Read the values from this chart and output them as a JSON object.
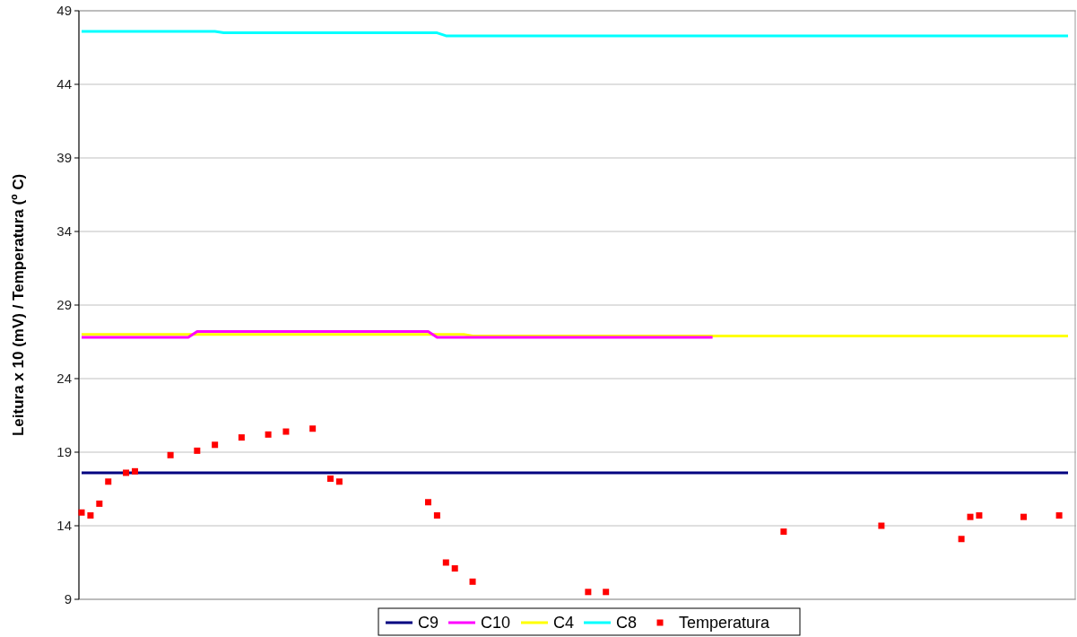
{
  "chart_data": {
    "type": "line",
    "ylabel": "Leitura x 10 (mV) / Temperatura (º C)",
    "ylim": [
      9,
      49
    ],
    "yticks": [
      9,
      14,
      19,
      24,
      29,
      34,
      39,
      44,
      49
    ],
    "grid": "y",
    "legend": "bottom",
    "tick_labels": "y",
    "categories": [
      null,
      null,
      null,
      null,
      null,
      null,
      null,
      null,
      null,
      null,
      null,
      null,
      null,
      null,
      null,
      null,
      null,
      null,
      null,
      null,
      null,
      null,
      null,
      null,
      null,
      null,
      null,
      null,
      null,
      null,
      null,
      null,
      null,
      null,
      null,
      null,
      null,
      null,
      null,
      null,
      null,
      null,
      null,
      null,
      null,
      null,
      null,
      null,
      null,
      null,
      null,
      null,
      null,
      null,
      null,
      null,
      null,
      null,
      null,
      null,
      null,
      null,
      null,
      null,
      null,
      null,
      null,
      null,
      null,
      null,
      null,
      null,
      null,
      null,
      null,
      null,
      null,
      null,
      null,
      null,
      null,
      null,
      null,
      null,
      null,
      null,
      null,
      null,
      null,
      null,
      null,
      null,
      null,
      null,
      null,
      null,
      null,
      null,
      null,
      null,
      null,
      null,
      null,
      null,
      null,
      null,
      null,
      null,
      null,
      null,
      null,
      null
    ],
    "series": [
      {
        "name": "C9",
        "color": "#000080",
        "values": [
          17.6,
          17.6,
          17.6,
          17.6,
          17.6,
          17.6,
          17.6,
          17.6,
          17.6,
          17.6,
          17.6,
          17.6,
          17.6,
          17.6,
          17.6,
          17.6,
          17.6,
          17.6,
          17.6,
          17.6,
          17.6,
          17.6,
          17.6,
          17.6,
          17.6,
          17.6,
          17.6,
          17.6,
          17.6,
          17.6,
          17.6,
          17.6,
          17.6,
          17.6,
          17.6,
          17.6,
          17.6,
          17.6,
          17.6,
          17.6,
          17.6,
          17.6,
          17.6,
          17.6,
          17.6,
          17.6,
          17.6,
          17.6,
          17.6,
          17.6,
          17.6,
          17.6,
          17.6,
          17.6,
          17.6,
          17.6,
          17.6,
          17.6,
          17.6,
          17.6,
          17.6,
          17.6,
          17.6,
          17.6,
          17.6,
          17.6,
          17.6,
          17.6,
          17.6,
          17.6,
          17.6,
          17.6,
          17.6,
          17.6,
          17.6,
          17.6,
          17.6,
          17.6,
          17.6,
          17.6,
          17.6,
          17.6,
          17.6,
          17.6,
          17.6,
          17.6,
          17.6,
          17.6,
          17.6,
          17.6,
          17.6,
          17.6,
          17.6,
          17.6,
          17.6,
          17.6,
          17.6,
          17.6,
          17.6,
          17.6,
          17.6,
          17.6,
          17.6,
          17.6,
          17.6,
          17.6,
          17.6,
          17.6,
          17.6,
          17.6,
          17.6,
          17.6
        ]
      },
      {
        "name": "C10",
        "color": "#ff00ff",
        "values": [
          26.8,
          26.8,
          26.8,
          26.8,
          26.8,
          26.8,
          26.8,
          26.8,
          26.8,
          26.8,
          26.8,
          26.8,
          26.8,
          27.2,
          27.2,
          27.2,
          27.2,
          27.2,
          27.2,
          27.2,
          27.2,
          27.2,
          27.2,
          27.2,
          27.2,
          27.2,
          27.2,
          27.2,
          27.2,
          27.2,
          27.2,
          27.2,
          27.2,
          27.2,
          27.2,
          27.2,
          27.2,
          27.2,
          27.2,
          27.2,
          26.8,
          26.8,
          26.8,
          26.8,
          26.8,
          26.8,
          26.8,
          26.8,
          26.8,
          26.8,
          26.8,
          26.8,
          26.8,
          26.8,
          26.8,
          26.8,
          26.8,
          26.8,
          26.8,
          26.8,
          26.8,
          26.8,
          26.8,
          26.8,
          26.8,
          26.8,
          26.8,
          26.8,
          26.8,
          26.8,
          26.8,
          26.8,
          null,
          null,
          null,
          null,
          null,
          null,
          null,
          null,
          null,
          null,
          null,
          null,
          null,
          null,
          null,
          null,
          null,
          null,
          null,
          null,
          null,
          null,
          null,
          null,
          null,
          null,
          null,
          null,
          null,
          null,
          null,
          null,
          null,
          null,
          null,
          null,
          null,
          null,
          null,
          null
        ]
      },
      {
        "name": "C4",
        "color": "#ffff00",
        "values": [
          27.0,
          27.0,
          27.0,
          27.0,
          27.0,
          27.0,
          27.0,
          27.0,
          27.0,
          27.0,
          27.0,
          27.0,
          27.0,
          27.0,
          27.0,
          27.0,
          27.0,
          27.0,
          27.0,
          27.0,
          27.0,
          27.0,
          27.0,
          27.0,
          27.0,
          27.0,
          27.0,
          27.0,
          27.0,
          27.0,
          27.0,
          27.0,
          27.0,
          27.0,
          27.0,
          27.0,
          27.0,
          27.0,
          27.0,
          27.0,
          27.0,
          27.0,
          27.0,
          27.0,
          26.9,
          26.9,
          26.9,
          26.9,
          26.9,
          26.9,
          26.9,
          26.9,
          26.9,
          26.9,
          26.9,
          26.9,
          26.9,
          26.9,
          26.9,
          26.9,
          26.9,
          26.9,
          26.9,
          26.9,
          26.9,
          26.9,
          26.9,
          26.9,
          26.9,
          26.9,
          26.9,
          26.9,
          26.9,
          26.9,
          26.9,
          26.9,
          26.9,
          26.9,
          26.9,
          26.9,
          26.9,
          26.9,
          26.9,
          26.9,
          26.9,
          26.9,
          26.9,
          26.9,
          26.9,
          26.9,
          26.9,
          26.9,
          26.9,
          26.9,
          26.9,
          26.9,
          26.9,
          26.9,
          26.9,
          26.9,
          26.9,
          26.9,
          26.9,
          26.9,
          26.9,
          26.9,
          26.9,
          26.9,
          26.9,
          26.9,
          26.9,
          26.9
        ]
      },
      {
        "name": "C8",
        "color": "#00ffff",
        "values": [
          47.6,
          47.6,
          47.6,
          47.6,
          47.6,
          47.6,
          47.6,
          47.6,
          47.6,
          47.6,
          47.6,
          47.6,
          47.6,
          47.6,
          47.6,
          47.6,
          47.5,
          47.5,
          47.5,
          47.5,
          47.5,
          47.5,
          47.5,
          47.5,
          47.5,
          47.5,
          47.5,
          47.5,
          47.5,
          47.5,
          47.5,
          47.5,
          47.5,
          47.5,
          47.5,
          47.5,
          47.5,
          47.5,
          47.5,
          47.5,
          47.5,
          47.3,
          47.3,
          47.3,
          47.3,
          47.3,
          47.3,
          47.3,
          47.3,
          47.3,
          47.3,
          47.3,
          47.3,
          47.3,
          47.3,
          47.3,
          47.3,
          47.3,
          47.3,
          47.3,
          47.3,
          47.3,
          47.3,
          47.3,
          47.3,
          47.3,
          47.3,
          47.3,
          47.3,
          47.3,
          47.3,
          47.3,
          47.3,
          47.3,
          47.3,
          47.3,
          47.3,
          47.3,
          47.3,
          47.3,
          47.3,
          47.3,
          47.3,
          47.3,
          47.3,
          47.3,
          47.3,
          47.3,
          47.3,
          47.3,
          47.3,
          47.3,
          47.3,
          47.3,
          47.3,
          47.3,
          47.3,
          47.3,
          47.3,
          47.3,
          47.3,
          47.3,
          47.3,
          47.3,
          47.3,
          47.3,
          47.3,
          47.3,
          47.3,
          47.3,
          47.3,
          47.3
        ]
      },
      {
        "name": "Temperatura",
        "type": "scatter",
        "marker": "square",
        "color": "#ff0000",
        "values": [
          14.9,
          14.7,
          15.5,
          17.0,
          null,
          17.6,
          17.7,
          null,
          null,
          null,
          18.8,
          null,
          null,
          19.1,
          null,
          19.5,
          null,
          null,
          20.0,
          null,
          null,
          20.2,
          null,
          20.4,
          null,
          null,
          20.6,
          null,
          17.2,
          17.0,
          null,
          null,
          null,
          null,
          null,
          null,
          null,
          null,
          null,
          15.6,
          14.7,
          11.5,
          11.1,
          null,
          10.2,
          null,
          null,
          null,
          null,
          null,
          null,
          null,
          null,
          null,
          null,
          null,
          null,
          9.5,
          null,
          9.5,
          null,
          null,
          null,
          null,
          null,
          null,
          null,
          null,
          null,
          null,
          null,
          null,
          null,
          null,
          null,
          null,
          null,
          null,
          null,
          13.6,
          null,
          null,
          null,
          null,
          null,
          null,
          null,
          null,
          null,
          null,
          14.0,
          null,
          null,
          null,
          null,
          null,
          null,
          null,
          null,
          13.1,
          14.6,
          14.7,
          null,
          null,
          null,
          null,
          14.6,
          null,
          null,
          null,
          14.7,
          null
        ]
      }
    ]
  }
}
